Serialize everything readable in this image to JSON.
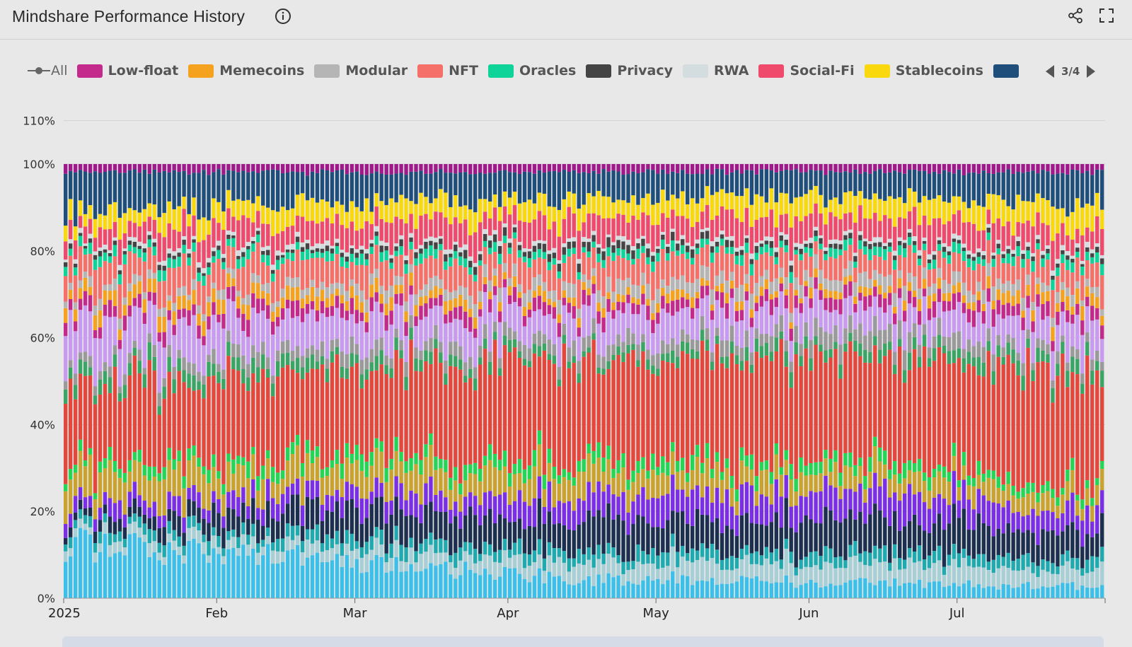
{
  "header": {
    "title": "Mindshare Performance History",
    "info_icon": "info-icon",
    "share_icon": "share-icon",
    "fullscreen_icon": "fullscreen-icon"
  },
  "legend": {
    "all_label": "All",
    "items": [
      {
        "label": "Low-float",
        "color": "#c42a8c"
      },
      {
        "label": "Memecoins",
        "color": "#f5a21f"
      },
      {
        "label": "Modular",
        "color": "#b5b5b5"
      },
      {
        "label": "NFT",
        "color": "#f6706a"
      },
      {
        "label": "Oracles",
        "color": "#0fd49a"
      },
      {
        "label": "Privacy",
        "color": "#444444"
      },
      {
        "label": "RWA",
        "color": "#d3dde0"
      },
      {
        "label": "Social-Fi",
        "color": "#ef4a6c"
      },
      {
        "label": "Stablecoins",
        "color": "#f9d90d"
      },
      {
        "label": "",
        "color": "#1f4e7a"
      }
    ],
    "page_indicator": "3/4"
  },
  "chart_data": {
    "type": "bar",
    "stacked": true,
    "normalized_percent": true,
    "title": "Mindshare Performance History",
    "ylim": [
      0,
      110
    ],
    "yticks": [
      "0%",
      "20%",
      "40%",
      "60%",
      "80%",
      "100%",
      "110%"
    ],
    "ytick_values": [
      0,
      20,
      40,
      60,
      80,
      100,
      110
    ],
    "x_tick_labels": [
      "2025",
      "Feb",
      "Mar",
      "Apr",
      "May",
      "Jun",
      "Jul"
    ],
    "x_tick_days": [
      0,
      31,
      59,
      90,
      120,
      151,
      181
    ],
    "x_range_days": [
      0,
      211
    ],
    "grid": true,
    "legend_placement": "top",
    "series_order_bottom_to_top": [
      {
        "name": "",
        "color": "#3cc0ea",
        "values": [
          14,
          10,
          5,
          4,
          3
        ]
      },
      {
        "name": "",
        "color": "#a8cfd6",
        "values": [
          2,
          3,
          4,
          5,
          4
        ]
      },
      {
        "name": "",
        "color": "#1faab0",
        "values": [
          2,
          3,
          3,
          3,
          3
        ]
      },
      {
        "name": "",
        "color": "#1d2f4f",
        "values": [
          2,
          6,
          8,
          8,
          6
        ]
      },
      {
        "name": "",
        "color": "#7a2ee5",
        "values": [
          3,
          4,
          6,
          7,
          5
        ]
      },
      {
        "name": "",
        "color": "#c9a230",
        "values": [
          8,
          6,
          6,
          5,
          4
        ]
      },
      {
        "name": "",
        "color": "#25d656",
        "values": [
          2,
          3,
          3,
          3,
          2
        ]
      },
      {
        "name": "",
        "color": "#e4473b",
        "values": [
          17,
          22,
          25,
          28,
          25
        ]
      },
      {
        "name": "",
        "color": "#3aa564",
        "values": [
          3,
          3,
          2,
          3,
          3
        ]
      },
      {
        "name": "",
        "color": "#9a9a9a",
        "values": [
          2,
          3,
          3,
          4,
          2
        ]
      },
      {
        "name": "",
        "color": "#c89af0",
        "values": [
          10,
          8,
          7,
          6,
          8
        ]
      },
      {
        "name": "Low-float",
        "color": "#c42a8c",
        "values": [
          3,
          3,
          3,
          3,
          3
        ]
      },
      {
        "name": "Memecoins",
        "color": "#f5a21f",
        "values": [
          3,
          3,
          2,
          2,
          3
        ]
      },
      {
        "name": "Modular",
        "color": "#b5b5b5",
        "values": [
          2,
          2,
          3,
          3,
          2
        ]
      },
      {
        "name": "NFT",
        "color": "#f6706a",
        "values": [
          7,
          6,
          6,
          5,
          6
        ]
      },
      {
        "name": "Oracles",
        "color": "#0fd49a",
        "values": [
          2,
          2,
          2,
          2,
          2
        ]
      },
      {
        "name": "Privacy",
        "color": "#444444",
        "values": [
          1,
          1,
          2,
          1,
          1
        ]
      },
      {
        "name": "RWA",
        "color": "#d3dde0",
        "values": [
          1,
          1,
          1,
          1,
          1
        ]
      },
      {
        "name": "Social-Fi",
        "color": "#ef4a6c",
        "values": [
          4,
          6,
          6,
          6,
          5
        ]
      },
      {
        "name": "Stablecoins",
        "color": "#f9d90d",
        "values": [
          4,
          5,
          5,
          5,
          6
        ]
      },
      {
        "name": "",
        "color": "#1f4e7a",
        "values": [
          10,
          8,
          7,
          6,
          8
        ]
      },
      {
        "name": "",
        "color": "#a0198a",
        "values": [
          2,
          2,
          2,
          2,
          2
        ]
      }
    ],
    "keyframe_days": [
      0,
      45,
      105,
      165,
      211
    ]
  }
}
